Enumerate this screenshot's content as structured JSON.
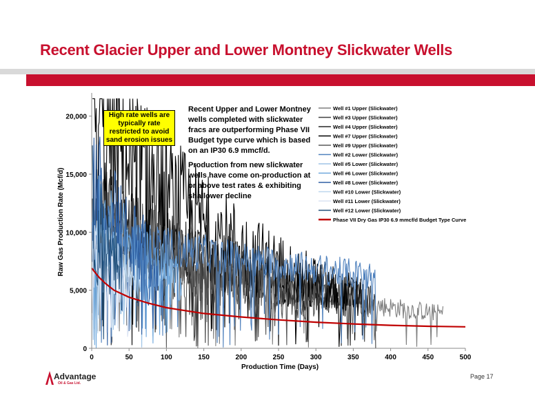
{
  "slide": {
    "title": "Recent Glacier Upper and Lower Montney Slickwater Wells",
    "page_label": "Page 17",
    "logo_name": "Advantage",
    "logo_sub": "Oil & Gas Ltd.",
    "brand_color": "#c8102e"
  },
  "callout": {
    "text": "High rate wells are typically rate restricted to avoid sand erosion issues"
  },
  "annotation": {
    "para1": "Recent Upper and Lower Montney wells completed with slickwater fracs are outperforming Phase VII Budget type curve which is based on an IP30 6.9 mmcf/d.",
    "para2": "Production from new slickwater wells have come on-production at or above test rates & exhibiting shallower decline"
  },
  "chart_data": {
    "type": "line",
    "title": "",
    "xlabel": "Production Time (Days)",
    "ylabel": "Raw Gas Production Rate (Mcf/d)",
    "xlim": [
      0,
      500
    ],
    "ylim": [
      0,
      22000
    ],
    "x_ticks": [
      "0",
      "50",
      "100",
      "150",
      "200",
      "250",
      "300",
      "350",
      "400",
      "450",
      "500"
    ],
    "y_ticks": [
      "0",
      "5,000",
      "10,000",
      "15,000",
      "20,000"
    ],
    "legend_position": "top-right",
    "grid": false,
    "series": [
      {
        "name": "Well #1 Upper (Slickwater)",
        "color": "#7f7f7f",
        "days": 470,
        "start": 9000,
        "end": 3000,
        "noise": 0.25
      },
      {
        "name": "Well #3 Upper (Slickwater)",
        "color": "#404040",
        "days": 380,
        "start": 10500,
        "end": 4200,
        "noise": 0.3
      },
      {
        "name": "Well #4 Upper (Slickwater)",
        "color": "#262626",
        "days": 370,
        "start": 12000,
        "end": 4000,
        "noise": 0.4
      },
      {
        "name": "Well #7 Upper (Slickwater)",
        "color": "#000000",
        "days": 360,
        "start": 20200,
        "end": 4300,
        "noise": 0.45
      },
      {
        "name": "Well #9 Upper (Slickwater)",
        "color": "#595959",
        "days": 300,
        "start": 11000,
        "end": 4000,
        "noise": 0.45
      },
      {
        "name": "Well #2 Lower (Slickwater)",
        "color": "#4f81bd",
        "days": 380,
        "start": 9800,
        "end": 6200,
        "noise": 0.2
      },
      {
        "name": "Well #5 Lower (Slickwater)",
        "color": "#9dc3e6",
        "days": 110,
        "start": 8000,
        "end": 5500,
        "noise": 0.4
      },
      {
        "name": "Well #6 Lower (Slickwater)",
        "color": "#6fa8dc",
        "days": 120,
        "start": 12000,
        "end": 6000,
        "noise": 0.35
      },
      {
        "name": "Well #8 Lower (Slickwater)",
        "color": "#2e5fa3",
        "days": 90,
        "start": 14000,
        "end": 6500,
        "noise": 0.5
      },
      {
        "name": "Well #10 Lower (Slickwater)",
        "color": "#bdd7ee",
        "days": 60,
        "start": 9000,
        "end": 6000,
        "noise": 0.4
      },
      {
        "name": "Well #11 Lower (Slickwater)",
        "color": "#dae3f3",
        "days": 50,
        "start": 8000,
        "end": 5500,
        "noise": 0.4
      },
      {
        "name": "Well #12 Lower (Slickwater)",
        "color": "#1f4e79",
        "days": 40,
        "start": 12000,
        "end": 6000,
        "noise": 0.5
      },
      {
        "name": "Phase VII Dry Gas IP30 6.9 mmcf/d Budget Type Curve",
        "color": "#c00000",
        "type_curve": true,
        "x": [
          0,
          10,
          20,
          30,
          50,
          75,
          100,
          150,
          200,
          250,
          300,
          350,
          400,
          450,
          500
        ],
        "y": [
          6900,
          6100,
          5500,
          5000,
          4400,
          3900,
          3500,
          3000,
          2700,
          2450,
          2250,
          2100,
          1980,
          1900,
          1850
        ]
      }
    ]
  }
}
